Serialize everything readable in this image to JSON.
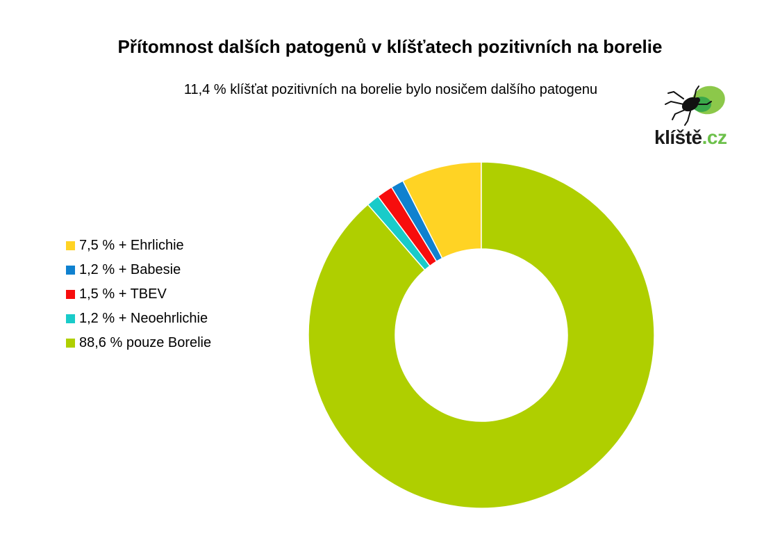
{
  "chart_data": {
    "type": "donut",
    "title": "Přítomnost dalších patogenů v klíšťatech pozitivních na borelie",
    "subtitle": "11,4 % klíšťat pozitivních na borelie bylo nosičem dalšího patogenu",
    "legend_position": "left",
    "slices": [
      {
        "label": "7,5 %  + Ehrlichie",
        "value": 7.5,
        "color": "#ffd324"
      },
      {
        "label": "1,2 %  + Babesie",
        "value": 1.2,
        "color": "#0f81cf"
      },
      {
        "label": "1,5 %  + TBEV",
        "value": 1.5,
        "color": "#f70d0d"
      },
      {
        "label": "1,2 % + Neoehrlichie",
        "value": 1.2,
        "color": "#19cbc9"
      },
      {
        "label": "88,6 % pouze Borelie",
        "value": 88.6,
        "color": "#afcf00"
      }
    ],
    "direction": "counterclockwise",
    "start": "top"
  },
  "logo": {
    "text_dark": "klíště",
    "text_green": ".cz",
    "icon": "tick-icon"
  }
}
